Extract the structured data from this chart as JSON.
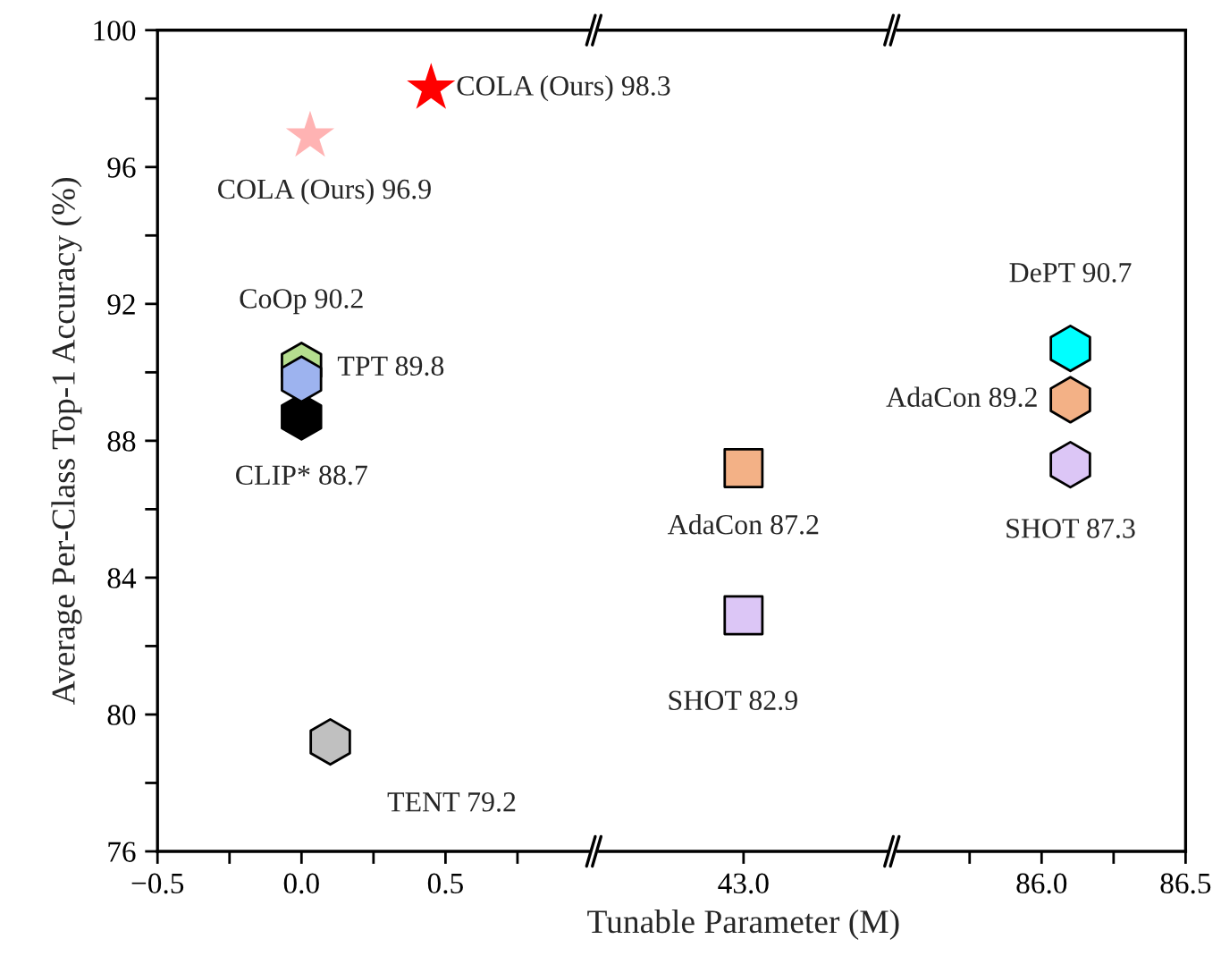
{
  "chart_data": [
    {
      "type": "scatter",
      "ylabel": "Average Per-Class Top-1 Accuracy (%)",
      "xlim": [
        -0.5,
        1.0
      ],
      "xticks": [
        {
          "value": -0.5,
          "label": "−0.5"
        },
        {
          "value": -0.25,
          "label": null
        },
        {
          "value": 0.0,
          "label": "0.0"
        },
        {
          "value": 0.25,
          "label": null
        },
        {
          "value": 0.5,
          "label": "0.5"
        },
        {
          "value": 0.75,
          "label": null
        }
      ],
      "ylim": [
        76,
        100
      ],
      "yticks": [
        76,
        {
          "value": 78,
          "label": null
        },
        80,
        {
          "value": 82,
          "label": null
        },
        84,
        {
          "value": 86,
          "label": null
        },
        88,
        {
          "value": 90,
          "label": null
        },
        92,
        {
          "value": 94,
          "label": null
        },
        96,
        {
          "value": 98,
          "label": null
        },
        100
      ],
      "grid": false,
      "legend": false,
      "series": [
        {
          "x": [
            0.45
          ],
          "values": [
            98.3
          ],
          "color": "#ff0000",
          "marker": "star"
        },
        {
          "x": [
            0.03
          ],
          "values": [
            96.9
          ],
          "color": "#ffb3b3",
          "marker": "star"
        },
        {
          "x": [
            0.0
          ],
          "values": [
            88.7
          ],
          "color": "#000000"
        },
        {
          "x": [
            0.0
          ],
          "values": [
            90.2
          ],
          "color": "#b5de8f"
        },
        {
          "x": [
            0.0
          ],
          "values": [
            89.8
          ],
          "color": "#9db3ef"
        },
        {
          "x": [
            0.1
          ],
          "values": [
            79.2
          ],
          "color": "#c0c0c0"
        }
      ],
      "annotations": [
        {
          "text": "COLA (Ours) 98.3",
          "x": 0.45,
          "y": 98.3
        },
        {
          "text": "COLA (Ours) 96.9",
          "x": 0.03,
          "y": 96.9
        },
        {
          "text": "CoOp 90.2",
          "x": 0.0,
          "y": 90.2
        },
        {
          "text": "TPT 89.8",
          "x": 0.0,
          "y": 89.8
        },
        {
          "text": "CLIP* 88.7",
          "x": 0.0,
          "y": 88.7
        },
        {
          "text": "TENT 79.2",
          "x": 0.1,
          "y": 79.2
        }
      ]
    },
    {
      "type": "scatter",
      "xlabel": "Tunable Parameter (M)",
      "tick_labels": "x",
      "categories": [
        "43.0"
      ],
      "ylim": [
        76,
        100
      ],
      "grid": false,
      "legend": false,
      "series": [
        {
          "x": [
            "43.0"
          ],
          "values": [
            87.2
          ],
          "color": "#f3b186",
          "marker": "square"
        },
        {
          "x": [
            "43.0"
          ],
          "values": [
            82.9
          ],
          "color": "#dcc6f6",
          "marker": "square"
        }
      ],
      "annotations": [
        {
          "text": "AdaCon 87.2",
          "x": "43.0",
          "y": 87.2
        },
        {
          "text": "SHOT 82.9",
          "x": "43.0",
          "y": 82.9
        }
      ]
    },
    {
      "type": "scatter",
      "tick_labels": "x",
      "xlim": [
        85.5,
        86.5
      ],
      "xticks": [
        {
          "value": 85.75,
          "label": null
        },
        {
          "value": 86.0,
          "label": "86.0"
        },
        {
          "value": 86.25,
          "label": null
        },
        {
          "value": 86.5,
          "label": "86.5"
        }
      ],
      "ylim": [
        76,
        100
      ],
      "grid": false,
      "legend": false,
      "series": [
        {
          "x": [
            86.1
          ],
          "values": [
            90.7
          ],
          "color": "#00ffff"
        },
        {
          "x": [
            86.1
          ],
          "values": [
            89.2
          ],
          "color": "#f3b186"
        },
        {
          "x": [
            86.1
          ],
          "values": [
            87.3
          ],
          "color": "#dcc6f6"
        }
      ],
      "annotations": [
        {
          "text": "DePT 90.7",
          "x": 86.1,
          "y": 90.7
        },
        {
          "text": "AdaCon 89.2",
          "x": 86.1,
          "y": 89.2
        },
        {
          "text": "SHOT 87.3",
          "x": 86.1,
          "y": 87.3
        }
      ]
    }
  ]
}
